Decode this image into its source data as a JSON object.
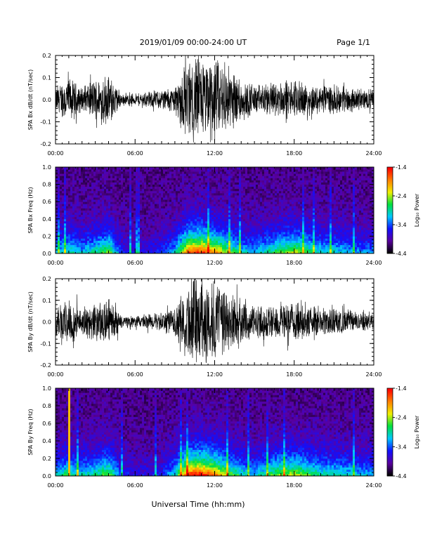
{
  "header": {
    "date_range": "2019/01/09  00:00-24:00 UT",
    "page": "Page 1/1"
  },
  "footer": {
    "xlabel": "Universal Time (hh:mm)"
  },
  "colorbar": {
    "label": "Log₁₀ Power",
    "ticks": [
      "-1.4",
      "-2.4",
      "-3.4",
      "-4.4"
    ],
    "tick_values": [
      -1.4,
      -2.4,
      -3.4,
      -4.4
    ],
    "range": [
      -4.4,
      -1.4
    ],
    "colors": [
      "#000000",
      "#5a00a0",
      "#1010ff",
      "#00c8ff",
      "#00e040",
      "#f0f000",
      "#ff8000",
      "#ff0000"
    ]
  },
  "chart_data": [
    {
      "type": "line",
      "title": "",
      "ylabel": "SPA Bx dB/dt (nT/sec)",
      "xlabel": "",
      "xlim": [
        0,
        24
      ],
      "ylim": [
        -0.2,
        0.2
      ],
      "x_ticks": [
        "00:00",
        "06:00",
        "12:00",
        "18:00",
        "24:00"
      ],
      "y_ticks": [
        "0.2",
        "0.1",
        "0.0",
        "-0.1",
        "-0.2"
      ],
      "y_tick_values": [
        0.2,
        0.1,
        0.0,
        -0.1,
        -0.2
      ],
      "series": [
        {
          "x_hours": [
            0,
            1,
            2,
            3,
            4,
            5,
            6,
            7,
            8,
            9,
            10,
            11,
            12,
            13,
            14,
            15,
            16,
            17,
            18,
            19,
            20,
            21,
            22,
            23,
            24
          ],
          "amplitude": [
            0.07,
            0.11,
            0.06,
            0.1,
            0.13,
            0.03,
            0.03,
            0.04,
            0.05,
            0.07,
            0.21,
            0.21,
            0.21,
            0.17,
            0.11,
            0.07,
            0.08,
            0.09,
            0.09,
            0.08,
            0.07,
            0.07,
            0.06,
            0.05,
            0.05
          ]
        }
      ],
      "grid": false,
      "color": "#000000"
    },
    {
      "type": "heatmap",
      "title": "",
      "ylabel": "SPA Bx Freq (Hz)",
      "xlim": [
        0,
        24
      ],
      "ylim": [
        0,
        1.0
      ],
      "x_ticks": [
        "00:00",
        "06:00",
        "12:00",
        "18:00",
        "24:00"
      ],
      "y_ticks": [
        "1.0",
        "0.8",
        "0.6",
        "0.4",
        "0.2",
        "0.0"
      ],
      "y_tick_values": [
        1.0,
        0.8,
        0.6,
        0.4,
        0.2,
        0.0
      ],
      "activity_hours": [
        0,
        1,
        2,
        3,
        4,
        5,
        6,
        7,
        8,
        9,
        10,
        11,
        12,
        13,
        14,
        15,
        16,
        17,
        18,
        19,
        20,
        21,
        22,
        23,
        24
      ],
      "activity": [
        0.35,
        0.45,
        0.35,
        0.45,
        0.6,
        0.2,
        0.15,
        0.15,
        0.2,
        0.35,
        0.9,
        0.95,
        0.8,
        0.6,
        0.4,
        0.35,
        0.45,
        0.55,
        0.65,
        0.5,
        0.4,
        0.4,
        0.35,
        0.3,
        0.3
      ],
      "log10_power_range": [
        -4.4,
        -1.4
      ]
    },
    {
      "type": "line",
      "title": "",
      "ylabel": "SPA By dB/dt (nT/sec)",
      "xlabel": "",
      "xlim": [
        0,
        24
      ],
      "ylim": [
        -0.2,
        0.2
      ],
      "x_ticks": [
        "00:00",
        "06:00",
        "12:00",
        "18:00",
        "24:00"
      ],
      "y_ticks": [
        "0.2",
        "0.1",
        "0.0",
        "-0.1",
        "-0.2"
      ],
      "y_tick_values": [
        0.2,
        0.1,
        0.0,
        -0.1,
        -0.2
      ],
      "series": [
        {
          "x_hours": [
            0,
            1,
            2,
            3,
            4,
            5,
            6,
            7,
            8,
            9,
            10,
            11,
            12,
            13,
            14,
            15,
            16,
            17,
            18,
            19,
            20,
            21,
            22,
            23,
            24
          ],
          "amplitude": [
            0.08,
            0.12,
            0.07,
            0.09,
            0.12,
            0.03,
            0.03,
            0.04,
            0.05,
            0.08,
            0.21,
            0.21,
            0.21,
            0.17,
            0.11,
            0.08,
            0.09,
            0.1,
            0.1,
            0.08,
            0.07,
            0.07,
            0.06,
            0.05,
            0.05
          ]
        }
      ],
      "grid": false,
      "color": "#000000"
    },
    {
      "type": "heatmap",
      "title": "",
      "ylabel": "SPA By Freq (Hz)",
      "xlim": [
        0,
        24
      ],
      "ylim": [
        0,
        1.0
      ],
      "x_ticks": [
        "00:00",
        "06:00",
        "12:00",
        "18:00",
        "24:00"
      ],
      "y_ticks": [
        "1.0",
        "0.8",
        "0.6",
        "0.4",
        "0.2",
        "0.0"
      ],
      "y_tick_values": [
        1.0,
        0.8,
        0.6,
        0.4,
        0.2,
        0.0
      ],
      "activity_hours": [
        0,
        1,
        2,
        3,
        4,
        5,
        6,
        7,
        8,
        9,
        10,
        11,
        12,
        13,
        14,
        15,
        16,
        17,
        18,
        19,
        20,
        21,
        22,
        23,
        24
      ],
      "activity": [
        0.4,
        0.5,
        0.4,
        0.45,
        0.6,
        0.2,
        0.15,
        0.15,
        0.2,
        0.4,
        0.95,
        1.0,
        0.85,
        0.6,
        0.45,
        0.35,
        0.5,
        0.6,
        0.65,
        0.55,
        0.45,
        0.45,
        0.4,
        0.35,
        0.35
      ],
      "spike_hour": 1.1,
      "log10_power_range": [
        -4.4,
        -1.4
      ]
    }
  ]
}
